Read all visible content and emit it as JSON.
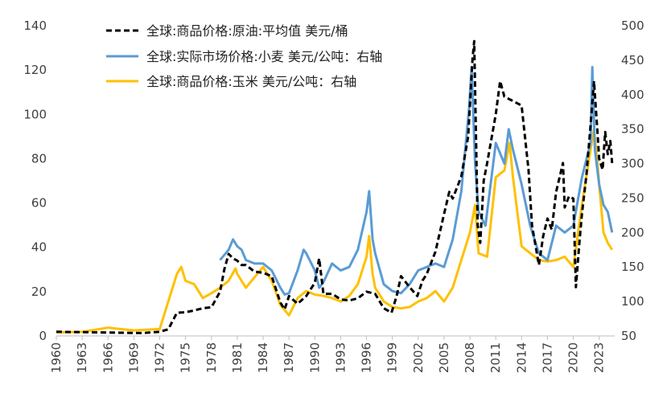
{
  "chart_data": {
    "type": "line",
    "grid": false,
    "legend_position": "top-left",
    "x_ticks": [
      "1960",
      "1963",
      "1966",
      "1969",
      "1972",
      "1975",
      "1978",
      "1981",
      "1984",
      "1987",
      "1990",
      "1993",
      "1996",
      "1999",
      "2002",
      "2005",
      "2008",
      "2011",
      "2014",
      "2017",
      "2020",
      "2023"
    ],
    "y_left": {
      "min": 0,
      "max": 140,
      "ticks": [
        "0",
        "20",
        "40",
        "60",
        "80",
        "100",
        "120",
        "140"
      ]
    },
    "y_right": {
      "min": 50,
      "max": 500,
      "ticks": [
        "50",
        "100",
        "150",
        "200",
        "250",
        "300",
        "350",
        "400",
        "450",
        "500"
      ]
    },
    "series": [
      {
        "name": "全球:商品价格:原油:平均值 美元/桶",
        "axis": "left",
        "color": "#000000",
        "dash": "dash",
        "points": [
          [
            1960,
            1.9
          ],
          [
            1965,
            1.6
          ],
          [
            1970,
            1.3
          ],
          [
            1972,
            1.9
          ],
          [
            1973,
            3
          ],
          [
            1974,
            10.5
          ],
          [
            1975,
            10.7
          ],
          [
            1976,
            11.5
          ],
          [
            1977,
            12.5
          ],
          [
            1978,
            12.9
          ],
          [
            1979,
            20
          ],
          [
            1979.5,
            30
          ],
          [
            1980,
            37
          ],
          [
            1980.5,
            35
          ],
          [
            1981,
            34
          ],
          [
            1981.5,
            32
          ],
          [
            1982,
            32
          ],
          [
            1983,
            29
          ],
          [
            1984,
            28.5
          ],
          [
            1985,
            27
          ],
          [
            1986,
            15
          ],
          [
            1986.5,
            12
          ],
          [
            1987,
            18
          ],
          [
            1988,
            14.5
          ],
          [
            1989,
            18
          ],
          [
            1990,
            24
          ],
          [
            1990.5,
            35
          ],
          [
            1991,
            19
          ],
          [
            1992,
            19
          ],
          [
            1993,
            16.5
          ],
          [
            1994,
            16
          ],
          [
            1995,
            17
          ],
          [
            1996,
            20
          ],
          [
            1997,
            19
          ],
          [
            1998,
            12.5
          ],
          [
            1998.9,
            10.5
          ],
          [
            1999.5,
            18
          ],
          [
            2000,
            27
          ],
          [
            2001,
            22
          ],
          [
            2001.9,
            18
          ],
          [
            2002.5,
            25
          ],
          [
            2003,
            28
          ],
          [
            2004,
            38
          ],
          [
            2005,
            55
          ],
          [
            2005.6,
            65
          ],
          [
            2006,
            62
          ],
          [
            2007,
            72
          ],
          [
            2007.8,
            90
          ],
          [
            2008.3,
            125
          ],
          [
            2008.5,
            133
          ],
          [
            2008.9,
            50
          ],
          [
            2009.2,
            42
          ],
          [
            2009.6,
            70
          ],
          [
            2010,
            78
          ],
          [
            2011,
            100
          ],
          [
            2011.5,
            115
          ],
          [
            2012,
            108
          ],
          [
            2013,
            106
          ],
          [
            2014,
            104
          ],
          [
            2014.8,
            75
          ],
          [
            2015.2,
            50
          ],
          [
            2016,
            32
          ],
          [
            2016.5,
            45
          ],
          [
            2017,
            53
          ],
          [
            2017.5,
            48
          ],
          [
            2018,
            65
          ],
          [
            2018.8,
            78
          ],
          [
            2019,
            58
          ],
          [
            2019.5,
            63
          ],
          [
            2020,
            62
          ],
          [
            2020.3,
            22
          ],
          [
            2020.7,
            42
          ],
          [
            2021,
            55
          ],
          [
            2021.5,
            72
          ],
          [
            2022,
            95
          ],
          [
            2022.4,
            115
          ],
          [
            2022.8,
            92
          ],
          [
            2023,
            80
          ],
          [
            2023.4,
            75
          ],
          [
            2023.7,
            92
          ],
          [
            2024,
            82
          ],
          [
            2024.3,
            88
          ],
          [
            2024.5,
            78
          ]
        ]
      },
      {
        "name": "全球:实际市场价格:小麦 美元/公吨：右轴",
        "axis": "right",
        "color": "#5B9BD5",
        "dash": "solid",
        "points": [
          [
            1979,
            160
          ],
          [
            1980,
            175
          ],
          [
            1980.5,
            190
          ],
          [
            1981,
            180
          ],
          [
            1981.5,
            175
          ],
          [
            1982,
            160
          ],
          [
            1983,
            155
          ],
          [
            1984,
            155
          ],
          [
            1985,
            145
          ],
          [
            1986,
            120
          ],
          [
            1986.5,
            110
          ],
          [
            1987,
            112
          ],
          [
            1988,
            145
          ],
          [
            1988.7,
            175
          ],
          [
            1989,
            170
          ],
          [
            1990,
            145
          ],
          [
            1990.5,
            120
          ],
          [
            1991,
            128
          ],
          [
            1992,
            155
          ],
          [
            1993,
            145
          ],
          [
            1994,
            150
          ],
          [
            1995,
            175
          ],
          [
            1996,
            230
          ],
          [
            1996.3,
            260
          ],
          [
            1996.7,
            190
          ],
          [
            1997,
            170
          ],
          [
            1998,
            125
          ],
          [
            1999,
            115
          ],
          [
            2000,
            112
          ],
          [
            2001,
            125
          ],
          [
            2002,
            145
          ],
          [
            2003,
            150
          ],
          [
            2004,
            155
          ],
          [
            2005,
            150
          ],
          [
            2006,
            190
          ],
          [
            2007,
            260
          ],
          [
            2007.9,
            380
          ],
          [
            2008.2,
            440
          ],
          [
            2008.6,
            300
          ],
          [
            2009,
            230
          ],
          [
            2009.8,
            210
          ],
          [
            2010,
            230
          ],
          [
            2010.8,
            310
          ],
          [
            2011,
            330
          ],
          [
            2012,
            300
          ],
          [
            2012.5,
            350
          ],
          [
            2013,
            320
          ],
          [
            2014,
            270
          ],
          [
            2015,
            210
          ],
          [
            2016,
            170
          ],
          [
            2017,
            160
          ],
          [
            2018,
            210
          ],
          [
            2019,
            200
          ],
          [
            2020,
            210
          ],
          [
            2021,
            280
          ],
          [
            2022,
            330
          ],
          [
            2022.2,
            440
          ],
          [
            2022.5,
            320
          ],
          [
            2023,
            270
          ],
          [
            2023.5,
            240
          ],
          [
            2024,
            230
          ],
          [
            2024.5,
            200
          ]
        ]
      },
      {
        "name": "全球:商品价格:玉米 美元/公吨：右轴",
        "axis": "right",
        "color": "#FFC000",
        "dash": "solid",
        "points": [
          [
            1960,
            55
          ],
          [
            1963,
            56
          ],
          [
            1966,
            62
          ],
          [
            1969,
            58
          ],
          [
            1972,
            60
          ],
          [
            1973,
            100
          ],
          [
            1974,
            140
          ],
          [
            1974.5,
            150
          ],
          [
            1975,
            130
          ],
          [
            1976,
            125
          ],
          [
            1977,
            105
          ],
          [
            1978,
            112
          ],
          [
            1979,
            120
          ],
          [
            1980,
            130
          ],
          [
            1980.8,
            148
          ],
          [
            1981,
            140
          ],
          [
            1982,
            120
          ],
          [
            1983,
            135
          ],
          [
            1984,
            150
          ],
          [
            1985,
            130
          ],
          [
            1986,
            95
          ],
          [
            1987,
            80
          ],
          [
            1988,
            105
          ],
          [
            1989,
            115
          ],
          [
            1990,
            110
          ],
          [
            1991,
            108
          ],
          [
            1992,
            105
          ],
          [
            1993,
            100
          ],
          [
            1994,
            108
          ],
          [
            1995,
            125
          ],
          [
            1996,
            165
          ],
          [
            1996.3,
            195
          ],
          [
            1996.7,
            140
          ],
          [
            1997,
            120
          ],
          [
            1998,
            100
          ],
          [
            1999,
            92
          ],
          [
            2000,
            90
          ],
          [
            2001,
            92
          ],
          [
            2002,
            100
          ],
          [
            2003,
            105
          ],
          [
            2004,
            115
          ],
          [
            2005,
            100
          ],
          [
            2006,
            120
          ],
          [
            2007,
            160
          ],
          [
            2008,
            200
          ],
          [
            2008.6,
            240
          ],
          [
            2009,
            170
          ],
          [
            2010,
            165
          ],
          [
            2011,
            280
          ],
          [
            2012,
            290
          ],
          [
            2012.6,
            330
          ],
          [
            2013,
            280
          ],
          [
            2014,
            180
          ],
          [
            2015,
            170
          ],
          [
            2016,
            160
          ],
          [
            2017,
            158
          ],
          [
            2018,
            160
          ],
          [
            2019,
            165
          ],
          [
            2020,
            150
          ],
          [
            2021,
            240
          ],
          [
            2022,
            320
          ],
          [
            2022.4,
            350
          ],
          [
            2022.8,
            300
          ],
          [
            2023,
            270
          ],
          [
            2023.5,
            200
          ],
          [
            2024,
            185
          ],
          [
            2024.5,
            175
          ]
        ]
      }
    ]
  }
}
